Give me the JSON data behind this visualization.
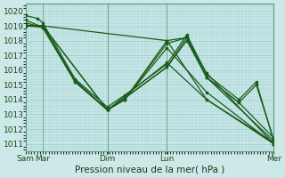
{
  "bg_color": "#cce8e8",
  "grid_color": "#99cccc",
  "line_color": "#1a5c1a",
  "marker_color": "#1a5c1a",
  "ylabel_ticks": [
    1011,
    1012,
    1013,
    1014,
    1015,
    1016,
    1017,
    1018,
    1019,
    1020
  ],
  "ylim": [
    1010.5,
    1020.5
  ],
  "xlabel": "Pression niveau de la mer( hPa )",
  "xtick_labels": [
    "Sam",
    "Mar",
    "Dim",
    "Lun",
    "Mer"
  ],
  "xtick_positions": [
    0.0,
    0.07,
    0.33,
    0.57,
    1.0
  ],
  "lines": [
    {
      "x": [
        0.0,
        0.07,
        0.57,
        0.73,
        1.0
      ],
      "y": [
        1019.0,
        1019.0,
        1018.0,
        1014.0,
        1011.0
      ]
    },
    {
      "x": [
        0.0,
        0.07,
        0.33,
        0.57,
        0.73,
        1.0
      ],
      "y": [
        1019.0,
        1019.0,
        1013.3,
        1016.5,
        1014.0,
        1011.1
      ]
    },
    {
      "x": [
        0.0,
        0.07,
        0.33,
        0.4,
        0.57,
        0.73,
        1.0
      ],
      "y": [
        1019.0,
        1019.0,
        1013.3,
        1014.0,
        1017.5,
        1014.5,
        1011.0
      ]
    },
    {
      "x": [
        0.0,
        0.07,
        0.2,
        0.33,
        0.4,
        0.57,
        0.65,
        0.73,
        1.0
      ],
      "y": [
        1019.0,
        1019.0,
        1015.3,
        1013.3,
        1014.0,
        1017.8,
        1018.2,
        1015.8,
        1011.0
      ]
    },
    {
      "x": [
        0.0,
        0.07,
        0.2,
        0.33,
        0.4,
        0.57,
        0.65,
        0.73,
        1.0
      ],
      "y": [
        1019.0,
        1018.9,
        1015.3,
        1013.3,
        1014.0,
        1018.0,
        1018.2,
        1015.5,
        1011.2
      ]
    },
    {
      "x": [
        0.0,
        0.07,
        0.2,
        0.33,
        0.4,
        0.57,
        0.65,
        0.73,
        0.86,
        1.0
      ],
      "y": [
        1019.2,
        1018.9,
        1015.2,
        1013.3,
        1014.1,
        1016.2,
        1018.0,
        1015.5,
        1013.8,
        1011.4
      ]
    },
    {
      "x": [
        0.0,
        0.07,
        0.2,
        0.33,
        0.4,
        0.57,
        0.65,
        0.73,
        0.86,
        0.93,
        1.0
      ],
      "y": [
        1019.4,
        1018.9,
        1015.2,
        1013.3,
        1014.1,
        1016.2,
        1018.2,
        1015.5,
        1013.8,
        1015.0,
        1011.3
      ]
    },
    {
      "x": [
        0.0,
        0.05,
        0.07,
        0.2,
        0.33,
        0.4,
        0.57,
        0.65,
        0.73,
        0.86,
        0.93,
        1.0
      ],
      "y": [
        1019.7,
        1019.5,
        1019.2,
        1015.4,
        1013.5,
        1014.3,
        1016.4,
        1018.4,
        1015.7,
        1014.0,
        1015.2,
        1011.2
      ]
    }
  ]
}
